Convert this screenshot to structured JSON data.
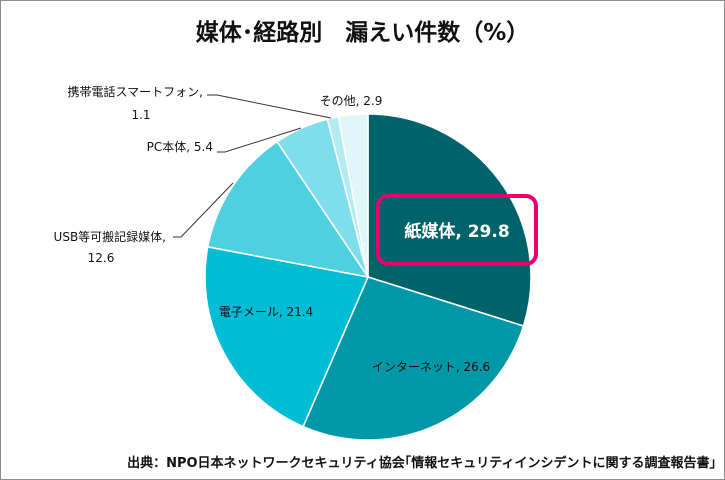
{
  "chart_data": {
    "type": "pie",
    "title": "媒体･経路別　漏えい件数（%）",
    "slices": [
      {
        "label": "紙媒体",
        "value": 29.8,
        "color": "#00636a",
        "highlight": true
      },
      {
        "label": "インターネット",
        "value": 26.6,
        "color": "#0097a7"
      },
      {
        "label": "電子メール",
        "value": 21.4,
        "color": "#00bcd4"
      },
      {
        "label": "USB等可搬記録媒体",
        "value": 12.6,
        "color": "#4fd0e1"
      },
      {
        "label": "PC本体",
        "value": 5.4,
        "color": "#80deea"
      },
      {
        "label": "携帯電話スマートフォン",
        "value": 1.1,
        "color": "#b2ebf2"
      },
      {
        "label": "その他",
        "value": 2.9,
        "color": "#e0f7fa"
      }
    ],
    "highlight_color": "#e8006f",
    "source": "出典：NPO日本ネットワークセキュリティ協会｢情報セキュリティインシデントに関する調査報告書｣"
  }
}
